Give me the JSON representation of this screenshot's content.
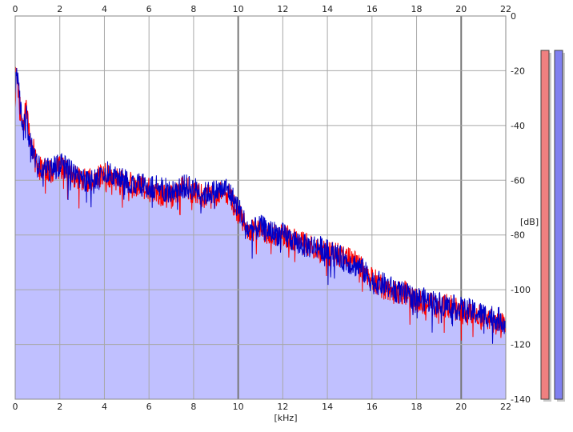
{
  "chart_data": {
    "type": "area",
    "title": "",
    "xlabel": "[kHz]",
    "ylabel": "[dB]",
    "xlim": [
      0,
      22
    ],
    "ylim": [
      -140,
      0
    ],
    "x_ticks": [
      0,
      2,
      4,
      6,
      8,
      10,
      12,
      14,
      16,
      18,
      20,
      22
    ],
    "x_tick_labels": [
      "0",
      "2",
      "4",
      "6",
      "8",
      "10",
      "12",
      "14",
      "16",
      "18",
      "20",
      "22"
    ],
    "y_ticks": [
      0,
      -20,
      -40,
      -60,
      -80,
      -100,
      -120,
      -140
    ],
    "y_tick_labels": [
      "0",
      "-20",
      "-40",
      "-60",
      "-80",
      "-100",
      "-120",
      "-140"
    ],
    "major_x_gridlines": [
      10,
      20
    ],
    "grid": true,
    "legend": "none",
    "fill_color": "#c0c0ff",
    "series": [
      {
        "color": "#ff0000",
        "x": [
          0,
          0.05,
          0.1,
          0.2,
          0.3,
          0.4,
          0.5,
          0.6,
          0.8,
          1,
          1.5,
          2,
          2.5,
          3,
          3.5,
          4,
          4.5,
          5,
          5.5,
          6,
          6.5,
          7,
          7.5,
          8,
          8.5,
          9,
          9.5,
          10,
          10.5,
          11,
          11.5,
          12,
          12.5,
          13,
          13.5,
          14,
          14.5,
          15,
          15.5,
          16,
          16.5,
          17,
          17.5,
          18,
          18.5,
          19,
          19.5,
          20,
          20.5,
          21,
          21.5,
          22
        ],
        "values": [
          -30,
          -20,
          -22,
          -32,
          -40,
          -38,
          -33,
          -42,
          -48,
          -55,
          -57,
          -55,
          -58,
          -60,
          -60,
          -58,
          -60,
          -61,
          -62,
          -63,
          -65,
          -66,
          -63,
          -64,
          -66,
          -66,
          -64,
          -72,
          -78,
          -78,
          -80,
          -80,
          -82,
          -83,
          -85,
          -87,
          -87,
          -89,
          -91,
          -96,
          -99,
          -101,
          -101,
          -104,
          -105,
          -106,
          -106,
          -108,
          -109,
          -110,
          -112,
          -113
        ]
      },
      {
        "color": "#0000c8",
        "x": [
          0,
          0.05,
          0.1,
          0.2,
          0.3,
          0.4,
          0.5,
          0.6,
          0.8,
          1,
          1.5,
          2,
          2.5,
          3,
          3.5,
          4,
          4.5,
          5,
          5.5,
          6,
          6.5,
          7,
          7.5,
          8,
          8.5,
          9,
          9.5,
          10,
          10.5,
          11,
          11.5,
          12,
          12.5,
          13,
          13.5,
          14,
          14.5,
          15,
          15.5,
          16,
          16.5,
          17,
          17.5,
          18,
          18.5,
          19,
          19.5,
          20,
          20.5,
          21,
          21.5,
          22
        ],
        "values": [
          -28,
          -19,
          -21,
          -31,
          -38,
          -40,
          -36,
          -44,
          -50,
          -55,
          -56,
          -54,
          -57,
          -59,
          -61,
          -57,
          -59,
          -60,
          -62,
          -62,
          -63,
          -64,
          -62,
          -63,
          -65,
          -64,
          -63,
          -70,
          -79,
          -77,
          -79,
          -80,
          -82,
          -84,
          -84,
          -86,
          -88,
          -90,
          -92,
          -97,
          -98,
          -100,
          -102,
          -103,
          -104,
          -105,
          -106,
          -107,
          -108,
          -109,
          -110,
          -112
        ]
      }
    ],
    "channel_meters": [
      {
        "color": "#f08080",
        "level": 1
      },
      {
        "color": "#8080f0",
        "level": 1
      }
    ]
  }
}
